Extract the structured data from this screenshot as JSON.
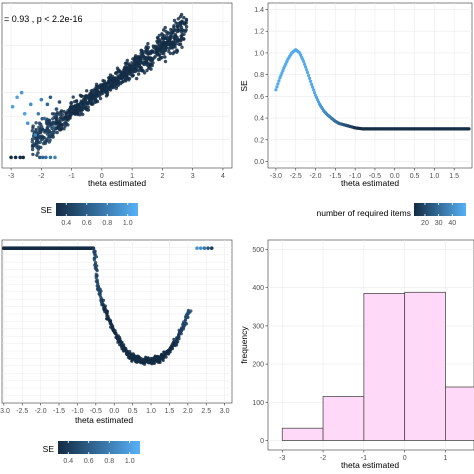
{
  "chart_data": [
    {
      "type": "scatter",
      "panel": "top-left",
      "annotation": "= 0.93 , p < 2.2e-16",
      "xlabel": "theta estimated",
      "ylabel": "",
      "xlim": [
        -3.3,
        4.3
      ],
      "ylim": [
        -3.2,
        3.8
      ],
      "xticks": [
        "-3",
        "-2",
        "-1",
        "0",
        "1",
        "2",
        "3",
        "4"
      ],
      "yticks": [],
      "grid": true,
      "color_by": "SE",
      "legend": {
        "title": "SE",
        "ticks": [
          "0.4",
          "0.6",
          "0.8",
          "1.0"
        ],
        "range": [
          0.3,
          1.1
        ],
        "placement": "bottom"
      },
      "colors": {
        "low": "#132b43",
        "high": "#56b1f7"
      },
      "cloud": {
        "x_range": [
          -2.3,
          2.8
        ],
        "slope": 0.93,
        "se_range": [
          0.29,
          0.35
        ]
      },
      "low_edge_points": [
        {
          "x": -3.0,
          "y": -2.75,
          "se": 0.3
        },
        {
          "x": -2.85,
          "y": -2.75,
          "se": 0.3
        },
        {
          "x": -2.7,
          "y": -2.75,
          "se": 0.3
        },
        {
          "x": -2.6,
          "y": -2.75,
          "se": 0.3
        },
        {
          "x": -2.05,
          "y": -2.75,
          "se": 0.55
        },
        {
          "x": -1.95,
          "y": -2.75,
          "se": 0.65
        },
        {
          "x": -1.85,
          "y": -2.75,
          "se": 0.7
        },
        {
          "x": -1.7,
          "y": -2.75,
          "se": 0.75
        },
        {
          "x": -1.55,
          "y": -2.75,
          "se": 0.85
        }
      ],
      "scatter_points": [
        {
          "x": -2.95,
          "y": -0.6,
          "se": 1.0
        },
        {
          "x": -2.8,
          "y": -0.2,
          "se": 1.0
        },
        {
          "x": -2.65,
          "y": 0.0,
          "se": 0.95
        },
        {
          "x": -2.55,
          "y": -0.9,
          "se": 1.0
        },
        {
          "x": -2.45,
          "y": -1.3,
          "se": 0.95
        },
        {
          "x": -2.35,
          "y": -0.5,
          "se": 0.9
        },
        {
          "x": -2.2,
          "y": -1.8,
          "se": 0.85
        },
        {
          "x": -2.1,
          "y": -0.9,
          "se": 0.8
        },
        {
          "x": -2.0,
          "y": -0.3,
          "se": 0.8
        },
        {
          "x": -1.9,
          "y": -1.1,
          "se": 0.7
        },
        {
          "x": -1.8,
          "y": -0.5,
          "se": 0.65
        },
        {
          "x": -1.7,
          "y": -0.2,
          "se": 0.6
        },
        {
          "x": -1.6,
          "y": -1.5,
          "se": 0.6
        },
        {
          "x": -1.5,
          "y": -0.7,
          "se": 0.55
        },
        {
          "x": -1.4,
          "y": -0.4,
          "se": 0.5
        }
      ]
    },
    {
      "type": "scatter",
      "panel": "top-right",
      "xlabel": "theta estimated",
      "ylabel": "SE",
      "xlim": [
        -3.2,
        1.95
      ],
      "ylim": [
        -0.06,
        1.46
      ],
      "xticks": [
        "-3.0",
        "-2.5",
        "-2.0",
        "-1.5",
        "-1.0",
        "-0.5",
        "0.0",
        "0.5",
        "1.0",
        "1.5"
      ],
      "xtick_values": [
        -3.0,
        -2.5,
        -2.0,
        -1.5,
        -1.0,
        -0.5,
        0.0,
        0.5,
        1.0,
        1.5
      ],
      "yticks": [
        "0.0",
        "0.2",
        "0.4",
        "0.6",
        "0.8",
        "1.0",
        "1.2",
        "1.4"
      ],
      "ytick_values": [
        0.0,
        0.2,
        0.4,
        0.6,
        0.8,
        1.0,
        1.2,
        1.4
      ],
      "grid": true,
      "color_by": "number of required items",
      "legend": {
        "title": "number of required items",
        "ticks": [
          "20",
          "30",
          "40"
        ],
        "range": [
          12,
          50
        ],
        "placement": "bottom"
      },
      "colors": {
        "low": "#132b43",
        "high": "#56b1f7"
      },
      "curve": [
        {
          "x": -3.0,
          "y": 0.66
        },
        {
          "x": -2.9,
          "y": 0.77
        },
        {
          "x": -2.8,
          "y": 0.86
        },
        {
          "x": -2.7,
          "y": 0.94
        },
        {
          "x": -2.6,
          "y": 1.0
        },
        {
          "x": -2.5,
          "y": 1.03
        },
        {
          "x": -2.4,
          "y": 1.0
        },
        {
          "x": -2.3,
          "y": 0.92
        },
        {
          "x": -2.2,
          "y": 0.82
        },
        {
          "x": -2.1,
          "y": 0.71
        },
        {
          "x": -2.0,
          "y": 0.61
        },
        {
          "x": -1.9,
          "y": 0.53
        },
        {
          "x": -1.8,
          "y": 0.47
        },
        {
          "x": -1.7,
          "y": 0.43
        },
        {
          "x": -1.6,
          "y": 0.4
        },
        {
          "x": -1.5,
          "y": 0.37
        },
        {
          "x": -1.4,
          "y": 0.35
        },
        {
          "x": -1.3,
          "y": 0.34
        },
        {
          "x": -1.2,
          "y": 0.33
        },
        {
          "x": -1.1,
          "y": 0.32
        },
        {
          "x": -1.0,
          "y": 0.31
        },
        {
          "x": -0.9,
          "y": 0.305
        },
        {
          "x": -0.8,
          "y": 0.3
        },
        {
          "x": -0.6,
          "y": 0.3
        },
        {
          "x": -0.4,
          "y": 0.3
        },
        {
          "x": 0.0,
          "y": 0.3
        },
        {
          "x": 0.5,
          "y": 0.3
        },
        {
          "x": 1.0,
          "y": 0.3
        },
        {
          "x": 1.5,
          "y": 0.3
        },
        {
          "x": 1.9,
          "y": 0.3
        }
      ]
    },
    {
      "type": "scatter",
      "panel": "bottom-left",
      "xlabel": "theta estimated",
      "ylabel": "",
      "xlim": [
        -3.05,
        3.2
      ],
      "ylim": [
        0,
        1
      ],
      "xticks": [
        "-3.0",
        "-2.5",
        "-2.0",
        "-1.5",
        "-1.0",
        "-0.5",
        "0.0",
        "0.5",
        "1.0",
        "1.5",
        "2.0",
        "2.5",
        "3.0"
      ],
      "xtick_values": [
        -3.0,
        -2.5,
        -2.0,
        -1.5,
        -1.0,
        -0.5,
        0.0,
        0.5,
        1.0,
        1.5,
        2.0,
        2.5,
        3.0
      ],
      "yticks": [],
      "grid": true,
      "color_by": "SE",
      "legend": {
        "title": "SE",
        "ticks": [
          "0.4",
          "0.6",
          "0.8",
          "1.0"
        ],
        "range": [
          0.3,
          1.1
        ],
        "placement": "bottom"
      },
      "colors": {
        "low": "#132b43",
        "high": "#56b1f7"
      },
      "flat_band": {
        "x_range": [
          -3.0,
          -0.55
        ],
        "y": 0.95
      },
      "right_band": [
        {
          "x": 2.25,
          "y": 0.95,
          "se": 0.95
        },
        {
          "x": 2.35,
          "y": 0.95,
          "se": 0.9
        },
        {
          "x": 2.45,
          "y": 0.95,
          "se": 0.75
        },
        {
          "x": 2.55,
          "y": 0.95,
          "se": 0.55
        },
        {
          "x": 2.65,
          "y": 0.95,
          "se": 0.4
        }
      ],
      "u_curve": [
        {
          "x": -0.55,
          "y": 0.95
        },
        {
          "x": -0.45,
          "y": 0.72
        },
        {
          "x": -0.3,
          "y": 0.6
        },
        {
          "x": -0.1,
          "y": 0.49
        },
        {
          "x": 0.1,
          "y": 0.39
        },
        {
          "x": 0.3,
          "y": 0.32
        },
        {
          "x": 0.5,
          "y": 0.28
        },
        {
          "x": 0.7,
          "y": 0.26
        },
        {
          "x": 0.9,
          "y": 0.255
        },
        {
          "x": 1.1,
          "y": 0.26
        },
        {
          "x": 1.3,
          "y": 0.28
        },
        {
          "x": 1.5,
          "y": 0.32
        },
        {
          "x": 1.7,
          "y": 0.39
        },
        {
          "x": 1.9,
          "y": 0.48
        },
        {
          "x": 2.05,
          "y": 0.58
        }
      ]
    },
    {
      "type": "bar",
      "panel": "bottom-right",
      "xlabel": "theta estimated",
      "ylabel": "frequency",
      "xlim": [
        -3.35,
        1.7
      ],
      "ylim": [
        -25,
        525
      ],
      "xticks": [
        "-3",
        "-2",
        "-1",
        "0",
        "1"
      ],
      "xtick_values": [
        -3,
        -2,
        -1,
        0,
        1
      ],
      "yticks": [
        "0",
        "100",
        "200",
        "300",
        "400",
        "500"
      ],
      "ytick_values": [
        0,
        100,
        200,
        300,
        400,
        500
      ],
      "grid": true,
      "bins": [
        {
          "x0": -3,
          "x1": -2,
          "value": 32
        },
        {
          "x0": -2,
          "x1": -1,
          "value": 115
        },
        {
          "x0": -1,
          "x1": 0,
          "value": 385
        },
        {
          "x0": 0,
          "x1": 1,
          "value": 388
        },
        {
          "x0": 1,
          "x1": 2,
          "value": 140
        }
      ],
      "colors": {
        "fill": "#ffd9f7",
        "stroke": "#4d4d4d"
      }
    }
  ]
}
